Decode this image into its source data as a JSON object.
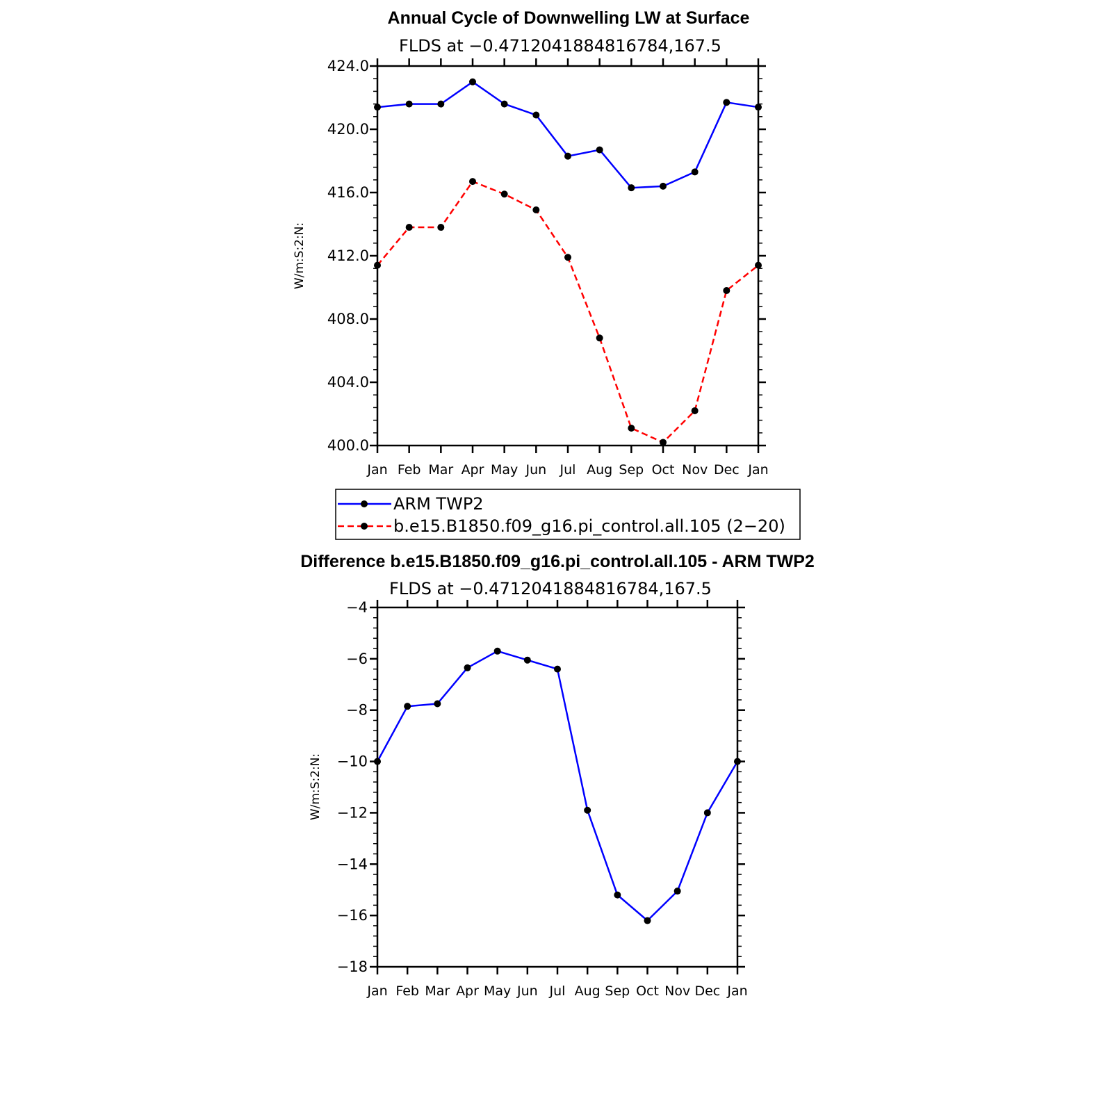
{
  "chart_data": [
    {
      "type": "line",
      "title": "Annual Cycle of Downwelling LW at Surface",
      "subtitle": "FLDS at −0.4712041884816784,167.5",
      "ylabel": "W/m:S:2:N:",
      "xlabel": "",
      "categories": [
        "Jan",
        "Feb",
        "Mar",
        "Apr",
        "May",
        "Jun",
        "Jul",
        "Aug",
        "Sep",
        "Oct",
        "Nov",
        "Dec",
        "Jan"
      ],
      "ylim": [
        400,
        424
      ],
      "yticks": [
        "424.0",
        "420.0",
        "416.0",
        "412.0",
        "408.0",
        "404.0",
        "400.0"
      ],
      "ytick_values": [
        424,
        420,
        416,
        412,
        408,
        404,
        400
      ],
      "series": [
        {
          "name": "ARM TWP2",
          "color": "#0000ff",
          "dash": "solid",
          "values": [
            421.4,
            421.6,
            421.6,
            423.0,
            421.6,
            420.9,
            418.3,
            418.7,
            416.3,
            416.4,
            417.3,
            421.7,
            421.4
          ]
        },
        {
          "name": "b.e15.B1850.f09_g16.pi_control.all.105 (2−20)",
          "color": "#ff0000",
          "dash": "dashed",
          "values": [
            411.4,
            413.8,
            413.8,
            416.7,
            415.9,
            414.9,
            411.9,
            406.8,
            401.1,
            400.2,
            402.2,
            409.8,
            411.4
          ]
        }
      ]
    },
    {
      "type": "line",
      "title": "Difference b.e15.B1850.f09_g16.pi_control.all.105 - ARM TWP2",
      "subtitle": "FLDS at −0.4712041884816784,167.5",
      "ylabel": "W/m:S:2:N:",
      "xlabel": "",
      "categories": [
        "Jan",
        "Feb",
        "Mar",
        "Apr",
        "May",
        "Jun",
        "Jul",
        "Aug",
        "Sep",
        "Oct",
        "Nov",
        "Dec",
        "Jan"
      ],
      "ylim": [
        -18,
        -4
      ],
      "yticks": [
        "−4",
        "−6",
        "−8",
        "−10",
        "−12",
        "−14",
        "−16",
        "−18"
      ],
      "ytick_values": [
        -4,
        -6,
        -8,
        -10,
        -12,
        -14,
        -16,
        -18
      ],
      "series": [
        {
          "name": "Difference",
          "color": "#0000ff",
          "dash": "solid",
          "values": [
            -10.0,
            -7.85,
            -7.75,
            -6.35,
            -5.7,
            -6.05,
            -6.4,
            -11.9,
            -15.2,
            -16.2,
            -15.05,
            -12.0,
            -10.0
          ]
        }
      ]
    }
  ]
}
